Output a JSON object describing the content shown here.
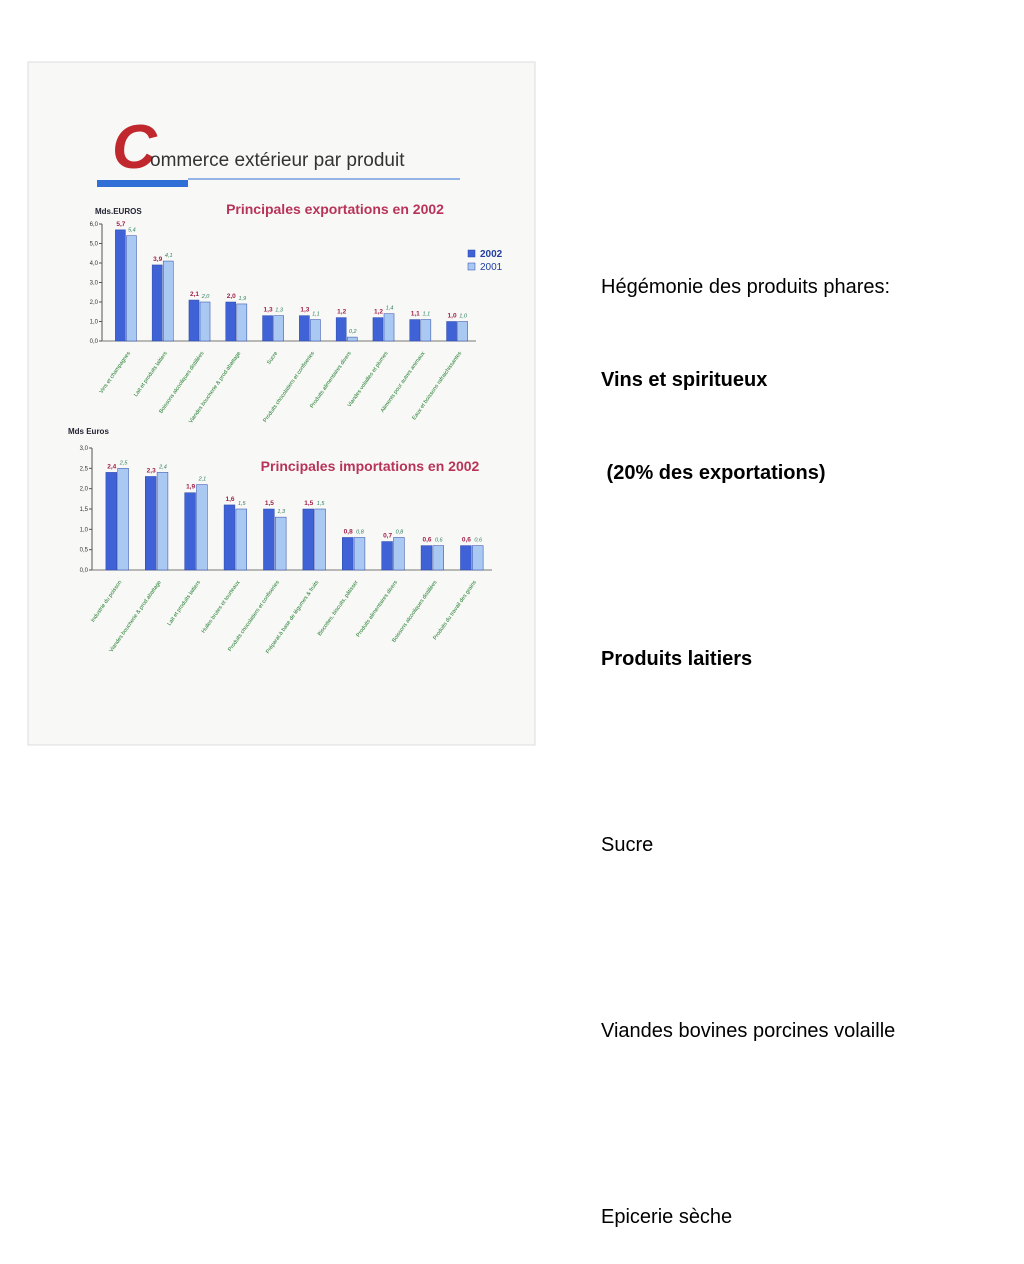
{
  "page_title": {
    "initial": "C",
    "rest": "ommerce extérieur par produit"
  },
  "chart_data": [
    {
      "type": "bar",
      "title": "Principales exportations en 2002",
      "y_label": "Mds.EUROS",
      "categories": [
        "Vins et champagnes",
        "Lait et produits laitiers",
        "Boissons alcooliques distillées",
        "Viandes boucherie & prod.abattage",
        "Sucre",
        "Produits chocolatiers et confiseries",
        "Produits alimentaires divers",
        "Viandes volailles et plumes",
        "Aliments pour autres animaux",
        "Eaux et boissons rafraichissantes"
      ],
      "series": [
        {
          "name": "2002",
          "color": "#3f63d6",
          "values": [
            5.7,
            3.9,
            2.1,
            2.0,
            1.3,
            1.3,
            1.2,
            1.2,
            1.1,
            1.0
          ],
          "value_labels": [
            "5,7",
            "3,9",
            "2,1",
            "2,0",
            "1,3",
            "1,3",
            "1,2",
            "1,2",
            "1,1",
            "1,0"
          ]
        },
        {
          "name": "2001",
          "color": "#a9c8f2",
          "values": [
            5.4,
            4.1,
            2.0,
            1.9,
            1.3,
            1.1,
            0.2,
            1.4,
            1.1,
            1.0
          ],
          "value_labels": [
            "5,4",
            "4,1",
            "2,0",
            "1,9",
            "1,3",
            "1,1",
            "0,2",
            "1,4",
            "1,1",
            "1,0"
          ]
        }
      ],
      "ylim": [
        0,
        6
      ],
      "yticks": [
        {
          "value": 0,
          "label": "0,0"
        },
        {
          "value": 1,
          "label": "1,0"
        },
        {
          "value": 2,
          "label": "2,0"
        },
        {
          "value": 3,
          "label": "3,0"
        },
        {
          "value": 4,
          "label": "4,0"
        },
        {
          "value": 5,
          "label": "5,0"
        },
        {
          "value": 6,
          "label": "6,0"
        }
      ],
      "legend": "right"
    },
    {
      "type": "bar",
      "title": "Principales importations en 2002",
      "y_label": "Mds Euros",
      "categories": [
        "Industrie du poisson",
        "Viandes boucherie & prod.abattage",
        "Lait et produits laitiers",
        "Huiles brutes et tourteaux",
        "Produits chocolatiers et confiseries",
        "Préparat.à base de légumes & fruits",
        "Biscottes, biscuits, pâtisser",
        "Produits alimentaires divers",
        "Boissons alcooliques distillées",
        "Produits du travail des grains"
      ],
      "series": [
        {
          "name": "2002",
          "color": "#3f63d6",
          "values": [
            2.4,
            2.3,
            1.9,
            1.6,
            1.5,
            1.5,
            0.8,
            0.7,
            0.6,
            0.6
          ],
          "value_labels": [
            "2,4",
            "2,3",
            "1,9",
            "1,6",
            "1,5",
            "1,5",
            "0,8",
            "0,7",
            "0,6",
            "0,6"
          ]
        },
        {
          "name": "2001",
          "color": "#a9c8f2",
          "values": [
            2.5,
            2.4,
            2.1,
            1.5,
            1.3,
            1.5,
            0.8,
            0.8,
            0.6,
            0.6
          ],
          "value_labels": [
            "2,5",
            "2,4",
            "2,1",
            "1,5",
            "1,3",
            "1,5",
            "0,8",
            "0,8",
            "0,6",
            "0,6"
          ]
        }
      ],
      "ylim": [
        0,
        3
      ],
      "yticks": [
        {
          "value": 0,
          "label": "0,0"
        },
        {
          "value": 0.5,
          "label": "0,5"
        },
        {
          "value": 1,
          "label": "1,0"
        },
        {
          "value": 1.5,
          "label": "1,5"
        },
        {
          "value": 2,
          "label": "2,0"
        },
        {
          "value": 2.5,
          "label": "2,5"
        },
        {
          "value": 3,
          "label": "3,0"
        }
      ]
    }
  ],
  "sidebar": [
    "Hégémonie des produits phares:",
    "Vins et spiritueux",
    " (20% des exportations)",
    "Produits laitiers",
    "Sucre",
    "Viandes bovines porcines volaille",
    "Epicerie sèche"
  ]
}
